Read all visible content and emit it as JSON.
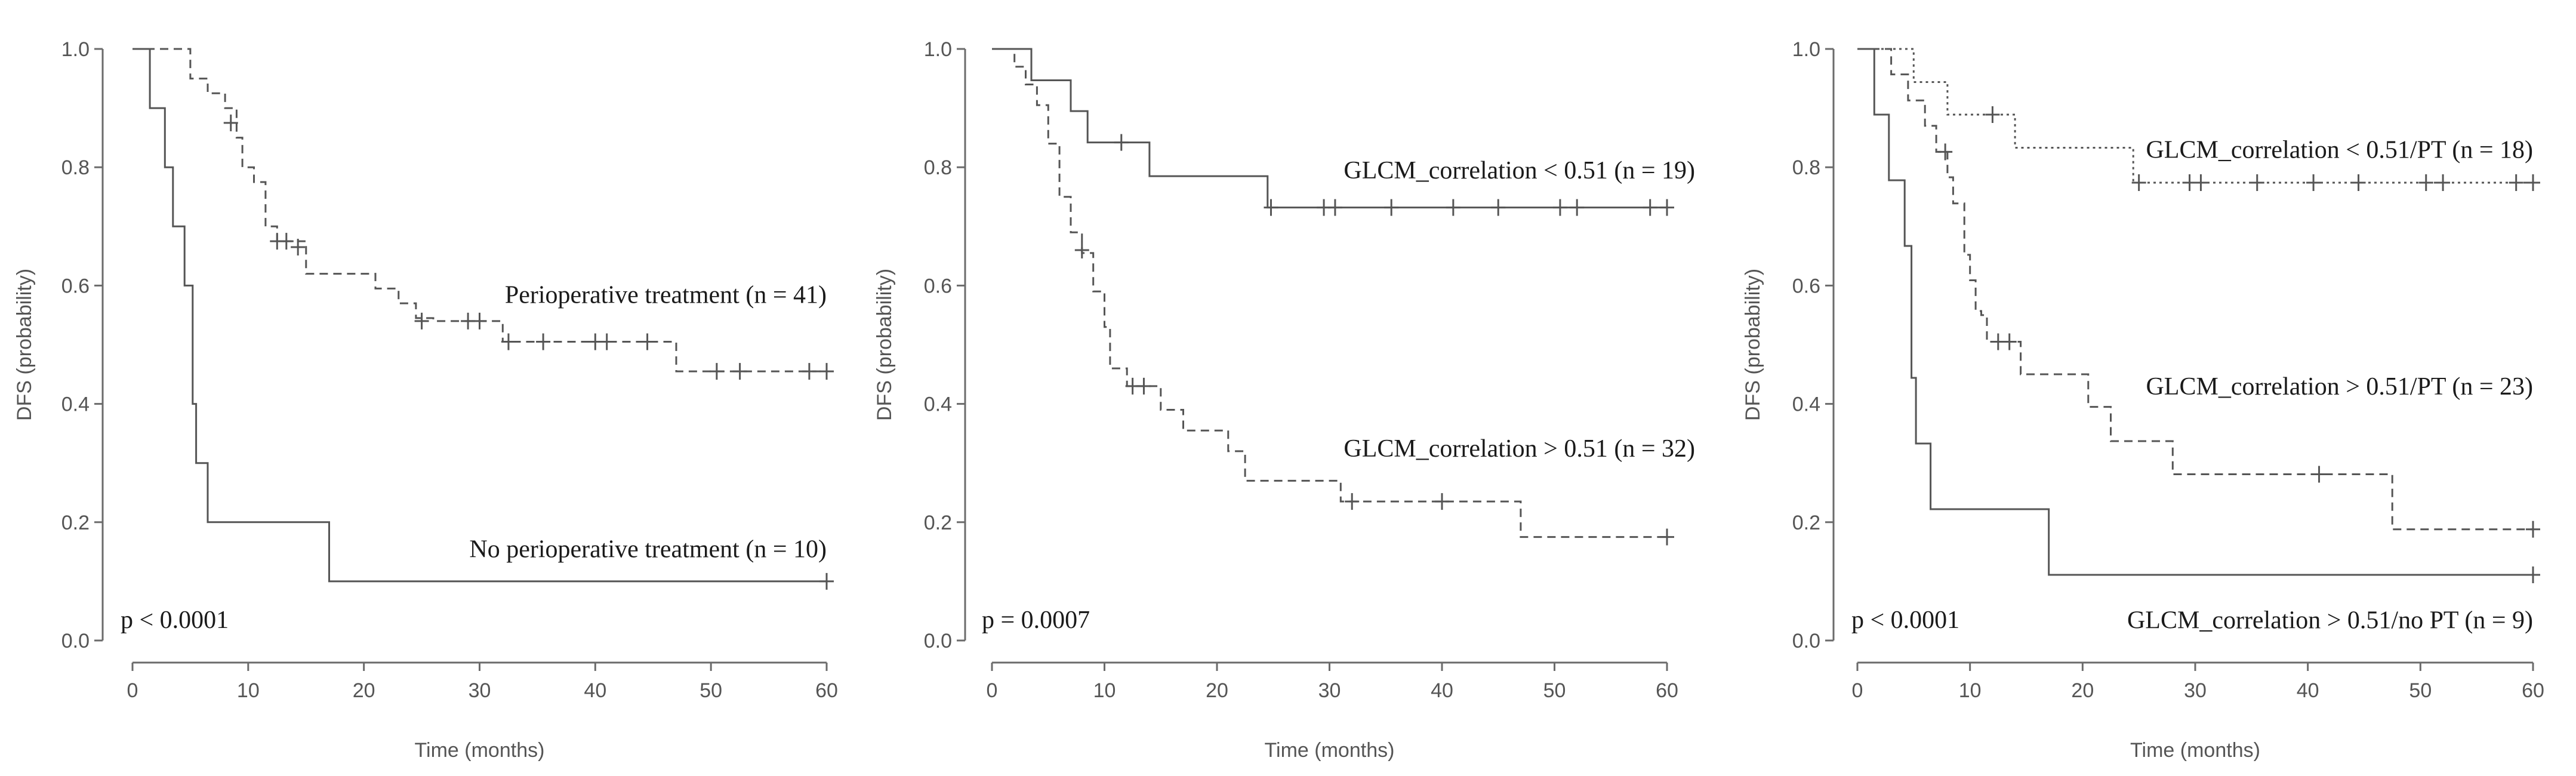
{
  "chart_data": [
    {
      "type": "line",
      "subtype": "kaplan-meier",
      "xlabel": "Time (months)",
      "ylabel": "DFS (probability)",
      "xlim": [
        0,
        60
      ],
      "ylim": [
        0,
        1
      ],
      "xticks": [
        0,
        10,
        20,
        30,
        40,
        50,
        60
      ],
      "yticks": [
        "0.0",
        "0.2",
        "0.4",
        "0.6",
        "0.8",
        "1.0"
      ],
      "p_value": "p < 0.0001",
      "series": [
        {
          "name": "Perioperative treatment (n = 41)",
          "style": "dashed",
          "color": "#555555",
          "steps": [
            [
              0,
              1.0
            ],
            [
              3.5,
              1.0
            ],
            [
              5,
              0.95
            ],
            [
              6.5,
              0.925
            ],
            [
              8,
              0.9
            ],
            [
              9,
              0.85
            ],
            [
              9.5,
              0.8
            ],
            [
              10.5,
              0.775
            ],
            [
              11.5,
              0.7
            ],
            [
              12.5,
              0.675
            ],
            [
              15,
              0.62
            ],
            [
              21,
              0.595
            ],
            [
              23,
              0.57
            ],
            [
              24.5,
              0.545
            ],
            [
              26,
              0.54
            ],
            [
              32,
              0.505
            ],
            [
              47,
              0.455
            ],
            [
              60,
              0.455
            ]
          ],
          "censored": [
            [
              8.5,
              0.875
            ],
            [
              12.5,
              0.675
            ],
            [
              13.3,
              0.675
            ],
            [
              14.3,
              0.665
            ],
            [
              25,
              0.54
            ],
            [
              29,
              0.54
            ],
            [
              30,
              0.54
            ],
            [
              32.5,
              0.505
            ],
            [
              35.5,
              0.505
            ],
            [
              40,
              0.505
            ],
            [
              41,
              0.505
            ],
            [
              44.5,
              0.505
            ],
            [
              50.5,
              0.455
            ],
            [
              52.5,
              0.455
            ],
            [
              58.5,
              0.455
            ],
            [
              60,
              0.455
            ]
          ],
          "label_x": 60,
          "label_y": 0.585
        },
        {
          "name": "No perioperative treatment (n = 10)",
          "style": "solid",
          "color": "#555555",
          "steps": [
            [
              0,
              1.0
            ],
            [
              1.5,
              1.0
            ],
            [
              1.5,
              0.9
            ],
            [
              2.8,
              0.9
            ],
            [
              2.8,
              0.8
            ],
            [
              3.5,
              0.8
            ],
            [
              3.5,
              0.7
            ],
            [
              4.5,
              0.7
            ],
            [
              4.5,
              0.6
            ],
            [
              5.2,
              0.6
            ],
            [
              5.2,
              0.4
            ],
            [
              5.5,
              0.4
            ],
            [
              5.5,
              0.3
            ],
            [
              6.5,
              0.3
            ],
            [
              6.5,
              0.2
            ],
            [
              17,
              0.2
            ],
            [
              17,
              0.1
            ],
            [
              60,
              0.1
            ]
          ],
          "censored": [
            [
              60,
              0.1
            ]
          ],
          "label_x": 60,
          "label_y": 0.155
        }
      ]
    },
    {
      "type": "line",
      "subtype": "kaplan-meier",
      "xlabel": "Time (months)",
      "ylabel": "DFS (probability)",
      "xlim": [
        0,
        60
      ],
      "ylim": [
        0,
        1
      ],
      "xticks": [
        0,
        10,
        20,
        30,
        40,
        50,
        60
      ],
      "yticks": [
        "0.0",
        "0.2",
        "0.4",
        "0.6",
        "0.8",
        "1.0"
      ],
      "p_value": "p = 0.0007",
      "series": [
        {
          "name": "GLCM_correlation < 0.51 (n = 19)",
          "style": "solid",
          "color": "#555555",
          "steps": [
            [
              0,
              1.0
            ],
            [
              3.5,
              1.0
            ],
            [
              3.5,
              0.947
            ],
            [
              7,
              0.947
            ],
            [
              7,
              0.895
            ],
            [
              8.5,
              0.895
            ],
            [
              8.5,
              0.842
            ],
            [
              14,
              0.842
            ],
            [
              14,
              0.785
            ],
            [
              24.5,
              0.785
            ],
            [
              24.5,
              0.732
            ],
            [
              60,
              0.732
            ]
          ],
          "censored": [
            [
              11.5,
              0.842
            ],
            [
              24.8,
              0.732
            ],
            [
              29.5,
              0.732
            ],
            [
              30.5,
              0.732
            ],
            [
              35.5,
              0.732
            ],
            [
              41,
              0.732
            ],
            [
              45,
              0.732
            ],
            [
              50.5,
              0.732
            ],
            [
              52,
              0.732
            ],
            [
              58.5,
              0.732
            ],
            [
              60,
              0.732
            ]
          ],
          "label_x": 60,
          "label_y": 0.795
        },
        {
          "name": "GLCM_correlation > 0.51 (n = 32)",
          "style": "dashed",
          "color": "#555555",
          "steps": [
            [
              0,
              1.0
            ],
            [
              2,
              0.97
            ],
            [
              3,
              0.94
            ],
            [
              4,
              0.905
            ],
            [
              5,
              0.84
            ],
            [
              6,
              0.75
            ],
            [
              7,
              0.69
            ],
            [
              8,
              0.655
            ],
            [
              9,
              0.59
            ],
            [
              10,
              0.53
            ],
            [
              10.5,
              0.46
            ],
            [
              12,
              0.43
            ],
            [
              15,
              0.39
            ],
            [
              17,
              0.355
            ],
            [
              21,
              0.32
            ],
            [
              22.5,
              0.27
            ],
            [
              31,
              0.235
            ],
            [
              47,
              0.175
            ],
            [
              60,
              0.175
            ]
          ],
          "censored": [
            [
              8,
              0.66
            ],
            [
              12.5,
              0.43
            ],
            [
              13.5,
              0.43
            ],
            [
              32,
              0.235
            ],
            [
              40,
              0.235
            ],
            [
              60,
              0.175
            ]
          ],
          "label_x": 60,
          "label_y": 0.325
        }
      ]
    },
    {
      "type": "line",
      "subtype": "kaplan-meier",
      "xlabel": "Time (months)",
      "ylabel": "DFS (probability)",
      "xlim": [
        0,
        60
      ],
      "ylim": [
        0,
        1
      ],
      "xticks": [
        0,
        10,
        20,
        30,
        40,
        50,
        60
      ],
      "yticks": [
        "0.0",
        "0.2",
        "0.4",
        "0.6",
        "0.8",
        "1.0"
      ],
      "p_value": "p < 0.0001",
      "series": [
        {
          "name": "GLCM_correlation < 0.51/PT (n = 18)",
          "style": "dotted",
          "color": "#555555",
          "steps": [
            [
              0,
              1.0
            ],
            [
              5,
              1.0
            ],
            [
              5,
              0.944
            ],
            [
              8,
              0.944
            ],
            [
              8,
              0.889
            ],
            [
              14,
              0.889
            ],
            [
              14,
              0.833
            ],
            [
              24.5,
              0.833
            ],
            [
              24.5,
              0.774
            ],
            [
              60,
              0.774
            ]
          ],
          "censored": [
            [
              12,
              0.889
            ],
            [
              25,
              0.774
            ],
            [
              29.5,
              0.774
            ],
            [
              30.5,
              0.774
            ],
            [
              35.5,
              0.774
            ],
            [
              40.5,
              0.774
            ],
            [
              44.5,
              0.774
            ],
            [
              50.5,
              0.774
            ],
            [
              52,
              0.774
            ],
            [
              58.5,
              0.774
            ],
            [
              60,
              0.774
            ]
          ],
          "label_x": 60,
          "label_y": 0.83
        },
        {
          "name": "GLCM_correlation > 0.51/PT (n = 23)",
          "style": "dashed",
          "color": "#555555",
          "steps": [
            [
              0,
              1.0
            ],
            [
              3,
              1.0
            ],
            [
              3,
              0.957
            ],
            [
              4.5,
              0.913
            ],
            [
              6,
              0.87
            ],
            [
              7,
              0.826
            ],
            [
              8,
              0.783
            ],
            [
              8.5,
              0.739
            ],
            [
              9.5,
              0.652
            ],
            [
              10,
              0.609
            ],
            [
              10.5,
              0.557
            ],
            [
              11,
              0.55
            ],
            [
              11.5,
              0.505
            ],
            [
              14.5,
              0.45
            ],
            [
              20.5,
              0.395
            ],
            [
              22.5,
              0.337
            ],
            [
              28,
              0.337
            ],
            [
              28,
              0.281
            ],
            [
              47.5,
              0.281
            ],
            [
              47.5,
              0.188
            ],
            [
              60,
              0.188
            ]
          ],
          "censored": [
            [
              7.8,
              0.826
            ],
            [
              12.5,
              0.505
            ],
            [
              13.5,
              0.505
            ],
            [
              41,
              0.281
            ],
            [
              60,
              0.188
            ]
          ],
          "label_x": 60,
          "label_y": 0.43
        },
        {
          "name": "GLCM_correlation > 0.51/no PT (n = 9)",
          "style": "solid",
          "color": "#555555",
          "steps": [
            [
              0,
              1.0
            ],
            [
              1.5,
              1.0
            ],
            [
              1.5,
              0.889
            ],
            [
              2.8,
              0.889
            ],
            [
              2.8,
              0.778
            ],
            [
              4.2,
              0.778
            ],
            [
              4.2,
              0.667
            ],
            [
              4.8,
              0.667
            ],
            [
              4.8,
              0.444
            ],
            [
              5.2,
              0.444
            ],
            [
              5.2,
              0.333
            ],
            [
              6.5,
              0.333
            ],
            [
              6.5,
              0.222
            ],
            [
              17,
              0.222
            ],
            [
              17,
              0.111
            ],
            [
              60,
              0.111
            ]
          ],
          "censored": [
            [
              60,
              0.111
            ]
          ],
          "label_x": 60,
          "label_y": 0.035
        }
      ]
    }
  ]
}
